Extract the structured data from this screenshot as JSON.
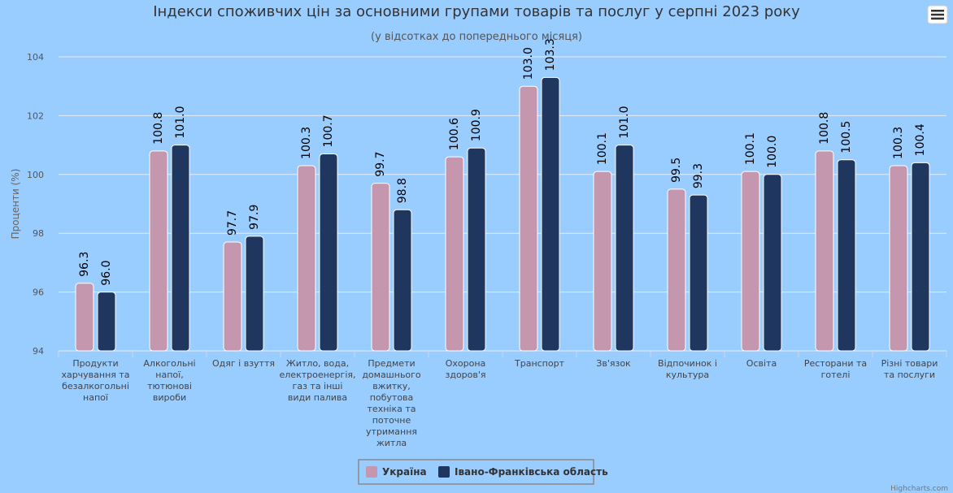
{
  "colors": {
    "background": "#99ccff",
    "ukraine": "#c497ae",
    "region": "#1f365f",
    "grid": "#e6ecf5"
  },
  "menu": {
    "icon": "hamburger-menu-icon"
  },
  "credit": "Highcharts.com",
  "chart_data": {
    "type": "bar",
    "title": "Індекси споживчих цін за основними групами товарів та послуг у серпні 2023 року",
    "subtitle": "(у відсотках до попереднього місяця)",
    "xlabel": "",
    "ylabel": "Проценти (%)",
    "ylim": [
      94,
      104
    ],
    "yticks": [
      94,
      96,
      98,
      100,
      102,
      104
    ],
    "grid": true,
    "legend_position": "bottom-center",
    "categories": [
      "Продукти харчування та безалкогольні напої",
      "Алкогольні напої, тютюнові вироби",
      "Одяг і взуття",
      "Житло, вода, електроенергія, газ та інші види палива",
      "Предмети домашнього вжитку, побутова техніка та поточне утримання житла",
      "Охорона здоров'я",
      "Транспорт",
      "Зв'язок",
      "Відпочинок і культура",
      "Освіта",
      "Ресторани та готелі",
      "Різні товари та послуги"
    ],
    "category_lines": [
      [
        "Продукти",
        "харчування та",
        "безалкогольні",
        "напої"
      ],
      [
        "Алкогольні",
        "напої,",
        "тютюнові",
        "вироби"
      ],
      [
        "Одяг і взуття"
      ],
      [
        "Житло, вода,",
        "електроенергія,",
        "газ та інші",
        "види палива"
      ],
      [
        "Предмети",
        "домашнього",
        "вжитку,",
        "побутова",
        "техніка та",
        "поточне",
        "утримання",
        "житла"
      ],
      [
        "Охорона",
        "здоров'я"
      ],
      [
        "Транспорт"
      ],
      [
        "Зв'язок"
      ],
      [
        "Відпочинок і",
        "культура"
      ],
      [
        "Освіта"
      ],
      [
        "Ресторани та",
        "готелі"
      ],
      [
        "Різні товари",
        "та послуги"
      ]
    ],
    "series": [
      {
        "name": "Україна",
        "values": [
          96.3,
          100.8,
          97.7,
          100.3,
          99.7,
          100.6,
          103.0,
          100.1,
          99.5,
          100.1,
          100.8,
          100.3
        ]
      },
      {
        "name": "Івано-Франківська область",
        "values": [
          96.0,
          101.0,
          97.9,
          100.7,
          98.8,
          100.9,
          103.3,
          101.0,
          99.3,
          100.0,
          100.5,
          100.4
        ]
      }
    ]
  }
}
